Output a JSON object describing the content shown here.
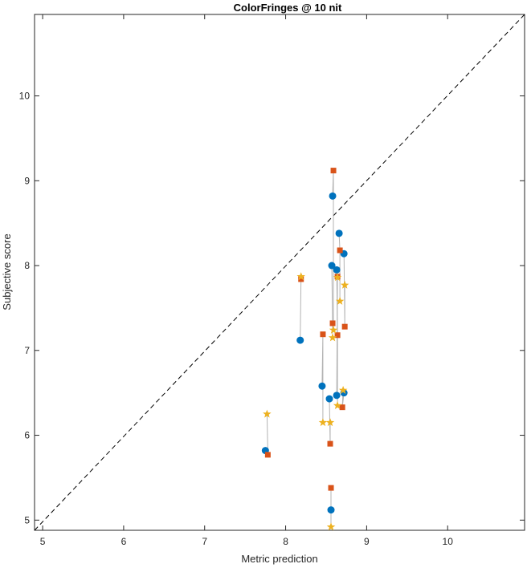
{
  "chart_data": {
    "type": "scatter",
    "title": "ColorFringes @ 10 nit",
    "xlabel": "Metric prediction",
    "ylabel": "Subjective score",
    "xlim": [
      4.9,
      10.95
    ],
    "ylim": [
      4.88,
      10.96
    ],
    "xticks": [
      5,
      6,
      7,
      8,
      9,
      10
    ],
    "yticks": [
      5,
      6,
      7,
      8,
      9,
      10
    ],
    "grid": false,
    "box": true,
    "reference_line": {
      "style": "dashed",
      "color": "#000000",
      "from": [
        4.9,
        4.88
      ],
      "to": [
        10.95,
        10.96
      ]
    },
    "connector_color": "#b3b3b3",
    "series": [
      {
        "marker": "circle",
        "color": "#0072bd",
        "points": [
          [
            7.75,
            5.82
          ],
          [
            8.18,
            7.12
          ],
          [
            8.45,
            6.58
          ],
          [
            8.54,
            6.43
          ],
          [
            8.58,
            8.82
          ],
          [
            8.57,
            8.0
          ],
          [
            8.63,
            7.95
          ],
          [
            8.66,
            8.38
          ],
          [
            8.72,
            8.14
          ],
          [
            8.63,
            6.47
          ],
          [
            8.72,
            6.5
          ],
          [
            8.56,
            5.12
          ]
        ]
      },
      {
        "marker": "square",
        "color": "#d95319",
        "points": [
          [
            7.78,
            5.77
          ],
          [
            8.19,
            7.84
          ],
          [
            8.46,
            7.19
          ],
          [
            8.55,
            5.9
          ],
          [
            8.59,
            9.12
          ],
          [
            8.58,
            7.32
          ],
          [
            8.64,
            7.18
          ],
          [
            8.67,
            8.18
          ],
          [
            8.73,
            7.28
          ],
          [
            8.64,
            7.87
          ],
          [
            8.7,
            6.33
          ],
          [
            8.56,
            5.38
          ]
        ]
      },
      {
        "marker": "star",
        "color": "#edb120",
        "points": [
          [
            7.77,
            6.25
          ],
          [
            8.19,
            7.87
          ],
          [
            8.46,
            6.15
          ],
          [
            8.55,
            6.15
          ],
          [
            8.59,
            7.24
          ],
          [
            8.58,
            7.15
          ],
          [
            8.64,
            6.35
          ],
          [
            8.67,
            7.58
          ],
          [
            8.73,
            7.77
          ],
          [
            8.64,
            7.86
          ],
          [
            8.71,
            6.53
          ],
          [
            8.56,
            4.92
          ]
        ]
      }
    ]
  }
}
